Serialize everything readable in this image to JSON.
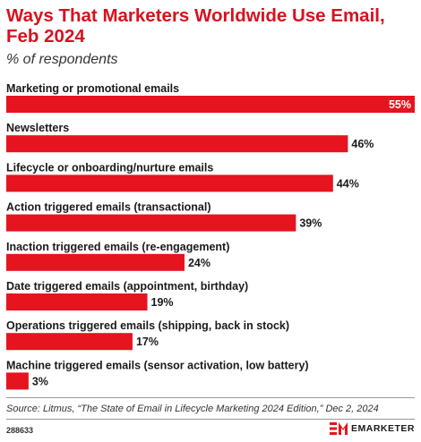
{
  "title": "Ways That Marketers Worldwide Use Email, Feb 2024",
  "subtitle": "% of respondents",
  "colors": {
    "bar": "#e5141f",
    "title": "#d9101f"
  },
  "chart_data": {
    "type": "bar",
    "orientation": "horizontal",
    "categories": [
      "Marketing or promotional emails",
      "Newsletters",
      "Lifecycle or onboarding/nurture emails",
      "Action triggered emails (transactional)",
      "Inaction triggered emails (re-engagement)",
      "Date triggered emails (appointment, birthday)",
      "Operations triggered emails (shipping, back in stock)",
      "Machine triggered emails (sensor activation, low battery)"
    ],
    "values": [
      55,
      46,
      44,
      39,
      24,
      19,
      17,
      3
    ],
    "value_labels": [
      "55%",
      "46%",
      "44%",
      "39%",
      "24%",
      "19%",
      "17%",
      "3%"
    ],
    "value_suffix": "%",
    "xlim": [
      0,
      55
    ]
  },
  "source": "Source: Litmus, “The State of Email in Lifecycle Marketing 2024 Edition,” Dec 2, 2024",
  "chart_id": "288633",
  "brand": "EMARKETER"
}
